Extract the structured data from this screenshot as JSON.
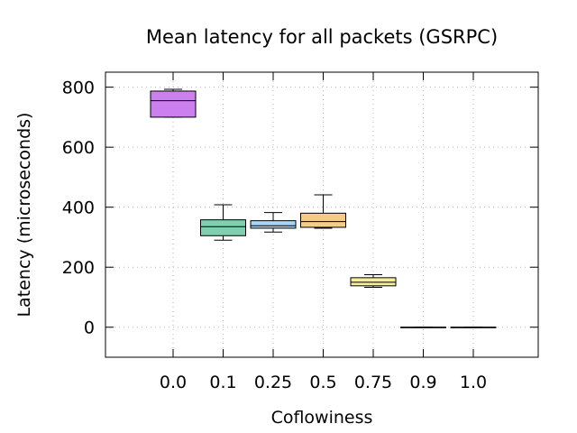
{
  "chart_data": {
    "type": "box",
    "title": "Mean latency for all packets (GSRPC)",
    "xlabel": "Coflowiness",
    "ylabel": "Latency (microseconds)",
    "ylim": [
      -100,
      850
    ],
    "yticks": [
      0,
      200,
      400,
      600,
      800
    ],
    "grid": true,
    "categories": [
      "0.0",
      "0.1",
      "0.25",
      "0.5",
      "0.75",
      "0.9",
      "1.0"
    ],
    "boxes": [
      {
        "category": "0.0",
        "min": 700,
        "q1": 700,
        "median": 755,
        "q3": 787,
        "max": 793,
        "color": "#cc80ee"
      },
      {
        "category": "0.1",
        "min": 290,
        "q1": 305,
        "median": 335,
        "q3": 358,
        "max": 408,
        "color": "#7fd0ae"
      },
      {
        "category": "0.25",
        "min": 317,
        "q1": 330,
        "median": 338,
        "q3": 355,
        "max": 382,
        "color": "#a8d4f5"
      },
      {
        "category": "0.5",
        "min": 330,
        "q1": 333,
        "median": 352,
        "q3": 380,
        "max": 441,
        "color": "#f3cd85"
      },
      {
        "category": "0.75",
        "min": 133,
        "q1": 138,
        "median": 150,
        "q3": 165,
        "max": 175,
        "color": "#f6ee9a"
      },
      {
        "category": "0.9",
        "min": 0,
        "q1": 0,
        "median": 0,
        "q3": 0,
        "max": 0,
        "color": "#8f8f8f"
      },
      {
        "category": "1.0",
        "min": 0,
        "q1": 0,
        "median": 0,
        "q3": 0,
        "max": 0,
        "color": "#8f8f8f"
      }
    ]
  }
}
